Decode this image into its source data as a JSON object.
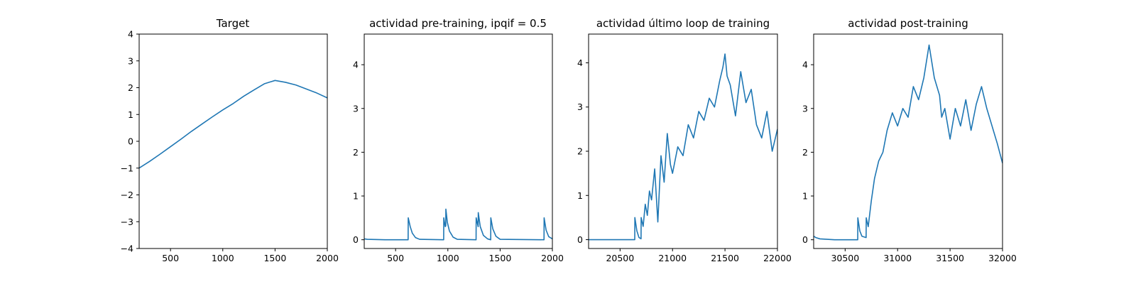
{
  "figure": {
    "panels": [
      {
        "title": "Target"
      },
      {
        "title": "actividad pre-training, ipqif = 0.5"
      },
      {
        "title": "actividad último loop de training"
      },
      {
        "title": "actividad post-training"
      }
    ]
  },
  "chart_data": [
    {
      "type": "line",
      "title": "Target",
      "xlabel": "",
      "ylabel": "",
      "xlim": [
        200,
        2000
      ],
      "ylim": [
        -4,
        4
      ],
      "xticks": [
        500,
        1000,
        1500,
        2000
      ],
      "yticks": [
        -4,
        -3,
        -2,
        -1,
        0,
        1,
        2,
        3,
        4
      ],
      "grid": false,
      "color": "#1f77b4",
      "series": [
        {
          "x": [
            200,
            300,
            400,
            500,
            600,
            700,
            800,
            900,
            1000,
            1100,
            1200,
            1300,
            1400,
            1500,
            1600,
            1700,
            1800,
            1900,
            2000
          ],
          "y": [
            -1.0,
            -0.75,
            -0.48,
            -0.2,
            0.08,
            0.37,
            0.64,
            0.91,
            1.17,
            1.41,
            1.68,
            1.92,
            2.15,
            2.27,
            2.2,
            2.1,
            1.95,
            1.8,
            1.62
          ]
        }
      ]
    },
    {
      "type": "line",
      "title": "actividad pre-training, ipqif = 0.5",
      "xlabel": "",
      "ylabel": "",
      "xlim": [
        200,
        2000
      ],
      "ylim": [
        -0.2,
        4.7
      ],
      "xticks": [
        500,
        1000,
        1500,
        2000
      ],
      "yticks": [
        0,
        1,
        2,
        3,
        4
      ],
      "grid": false,
      "color": "#1f77b4",
      "series": [
        {
          "x": [
            200,
            230,
            400,
            620,
            621,
            640,
            660,
            690,
            730,
            960,
            961,
            975,
            980,
            981,
            995,
            1015,
            1050,
            1090,
            1270,
            1271,
            1290,
            1291,
            1310,
            1340,
            1380,
            1410,
            1411,
            1430,
            1460,
            1500,
            1920,
            1921,
            1940,
            1965,
            2000
          ],
          "y": [
            0.02,
            0.01,
            0.0,
            0.0,
            0.5,
            0.3,
            0.15,
            0.05,
            0.01,
            0.0,
            0.5,
            0.3,
            0.32,
            0.7,
            0.4,
            0.2,
            0.06,
            0.01,
            0.0,
            0.5,
            0.3,
            0.62,
            0.3,
            0.1,
            0.02,
            0.0,
            0.5,
            0.25,
            0.08,
            0.01,
            0.0,
            0.5,
            0.22,
            0.07,
            0.02
          ]
        }
      ]
    },
    {
      "type": "line",
      "title": "actividad último loop de training",
      "xlabel": "",
      "ylabel": "",
      "xlim": [
        20200,
        22000
      ],
      "ylim": [
        -0.2,
        4.65
      ],
      "xticks": [
        20500,
        21000,
        21500,
        22000
      ],
      "yticks": [
        0,
        1,
        2,
        3,
        4
      ],
      "grid": false,
      "color": "#1f77b4",
      "series": [
        {
          "x": [
            20200,
            20400,
            20640,
            20641,
            20660,
            20680,
            20700,
            20701,
            20720,
            20740,
            20760,
            20780,
            20800,
            20830,
            20860,
            20890,
            20920,
            20950,
            20980,
            21000,
            21050,
            21100,
            21150,
            21200,
            21250,
            21300,
            21350,
            21400,
            21450,
            21480,
            21500,
            21520,
            21550,
            21600,
            21650,
            21700,
            21750,
            21800,
            21850,
            21900,
            21950,
            22000
          ],
          "y": [
            0.0,
            0.0,
            0.0,
            0.5,
            0.2,
            0.05,
            0.02,
            0.5,
            0.3,
            0.8,
            0.55,
            1.1,
            0.9,
            1.6,
            0.4,
            1.9,
            1.3,
            2.4,
            1.7,
            1.5,
            2.1,
            1.9,
            2.6,
            2.3,
            2.9,
            2.7,
            3.2,
            3.0,
            3.6,
            3.9,
            4.2,
            3.7,
            3.5,
            2.8,
            3.8,
            3.1,
            3.4,
            2.6,
            2.3,
            2.9,
            2.0,
            2.5
          ]
        }
      ]
    },
    {
      "type": "line",
      "title": "actividad post-training",
      "xlabel": "",
      "ylabel": "",
      "xlim": [
        30200,
        32000
      ],
      "ylim": [
        -0.2,
        4.7
      ],
      "xticks": [
        30500,
        31000,
        31500,
        32000
      ],
      "yticks": [
        0,
        1,
        2,
        3,
        4
      ],
      "grid": false,
      "color": "#1f77b4",
      "series": [
        {
          "x": [
            30200,
            30220,
            30260,
            30400,
            30620,
            30621,
            30640,
            30660,
            30700,
            30701,
            30720,
            30750,
            30780,
            30820,
            30860,
            30900,
            30950,
            31000,
            31050,
            31100,
            31150,
            31200,
            31250,
            31300,
            31350,
            31400,
            31420,
            31450,
            31500,
            31550,
            31600,
            31650,
            31700,
            31750,
            31800,
            31850,
            31900,
            31950,
            32000
          ],
          "y": [
            0.08,
            0.05,
            0.02,
            0.0,
            0.0,
            0.5,
            0.2,
            0.08,
            0.05,
            0.5,
            0.3,
            0.9,
            1.4,
            1.8,
            2.0,
            2.5,
            2.9,
            2.6,
            3.0,
            2.8,
            3.5,
            3.2,
            3.7,
            4.45,
            3.7,
            3.3,
            2.8,
            3.0,
            2.3,
            3.0,
            2.6,
            3.2,
            2.5,
            3.1,
            3.5,
            3.0,
            2.6,
            2.2,
            1.75
          ]
        }
      ]
    }
  ]
}
